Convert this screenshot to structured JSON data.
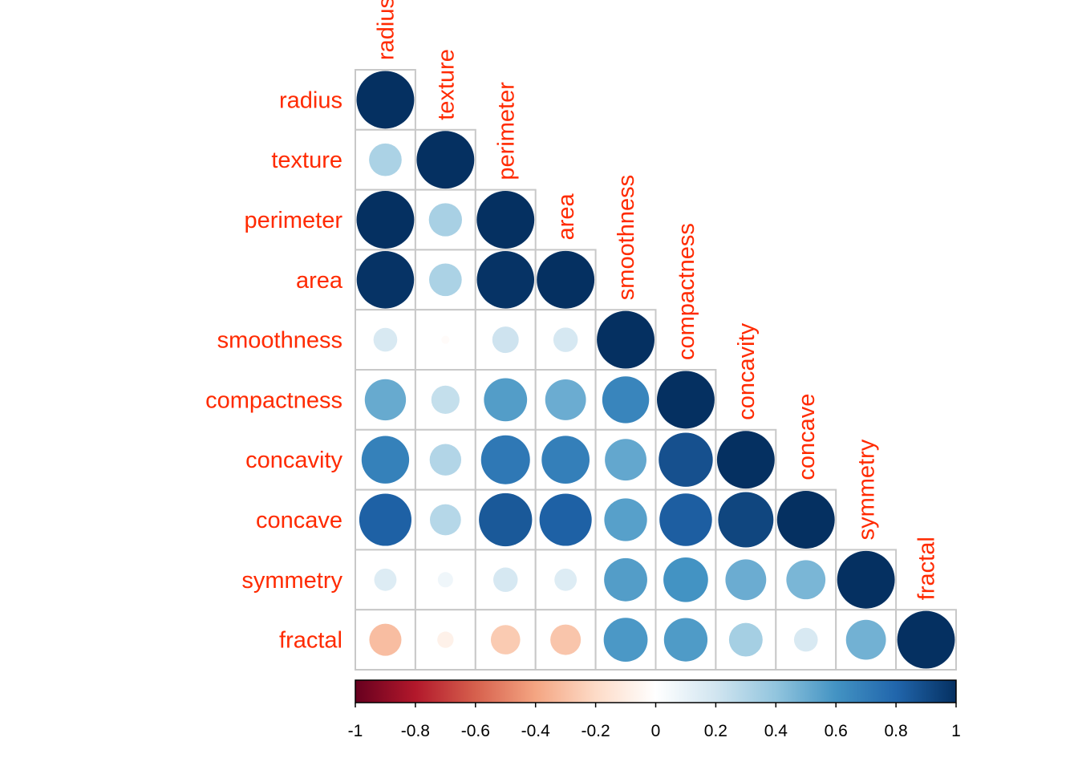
{
  "chart_data": {
    "type": "heatmap",
    "subtype": "correlation-circle-lower-triangle",
    "title": "",
    "variables": [
      "radius",
      "texture",
      "perimeter",
      "area",
      "smoothness",
      "compactness",
      "concavity",
      "concave",
      "symmetry",
      "fractal"
    ],
    "matrix": [
      [
        1.0,
        0.32,
        1.0,
        0.99,
        0.17,
        0.51,
        0.68,
        0.82,
        0.15,
        -0.31
      ],
      [
        0.32,
        1.0,
        0.33,
        0.32,
        -0.02,
        0.24,
        0.3,
        0.29,
        0.07,
        -0.08
      ],
      [
        1.0,
        0.33,
        1.0,
        0.99,
        0.21,
        0.56,
        0.72,
        0.85,
        0.18,
        -0.26
      ],
      [
        0.99,
        0.32,
        0.99,
        1.0,
        0.18,
        0.5,
        0.69,
        0.82,
        0.15,
        -0.28
      ],
      [
        0.17,
        -0.02,
        0.21,
        0.18,
        1.0,
        0.66,
        0.52,
        0.55,
        0.56,
        0.58
      ],
      [
        0.51,
        0.24,
        0.56,
        0.5,
        0.66,
        1.0,
        0.88,
        0.83,
        0.6,
        0.57
      ],
      [
        0.68,
        0.3,
        0.72,
        0.69,
        0.52,
        0.88,
        1.0,
        0.92,
        0.5,
        0.34
      ],
      [
        0.82,
        0.29,
        0.85,
        0.82,
        0.55,
        0.83,
        0.92,
        1.0,
        0.46,
        0.17
      ],
      [
        0.15,
        0.07,
        0.18,
        0.15,
        0.56,
        0.6,
        0.5,
        0.46,
        1.0,
        0.48
      ],
      [
        -0.31,
        -0.08,
        -0.26,
        -0.28,
        0.58,
        0.57,
        0.34,
        0.17,
        0.48,
        1.0
      ]
    ],
    "display": "lower",
    "colorbar": {
      "range": [
        -1,
        1
      ],
      "ticks": [
        "-1",
        "-0.8",
        "-0.6",
        "-0.4",
        "-0.2",
        "0",
        "0.2",
        "0.4",
        "0.6",
        "0.8",
        "1"
      ],
      "position": "bottom"
    },
    "label_color": "#ff2a00",
    "grid_color": "#c8c8c8",
    "palette": [
      "#67001f",
      "#b2182b",
      "#d6604d",
      "#f4a582",
      "#fddbc7",
      "#ffffff",
      "#d1e5f0",
      "#92c5de",
      "#4393c3",
      "#2166ac",
      "#053061"
    ]
  }
}
